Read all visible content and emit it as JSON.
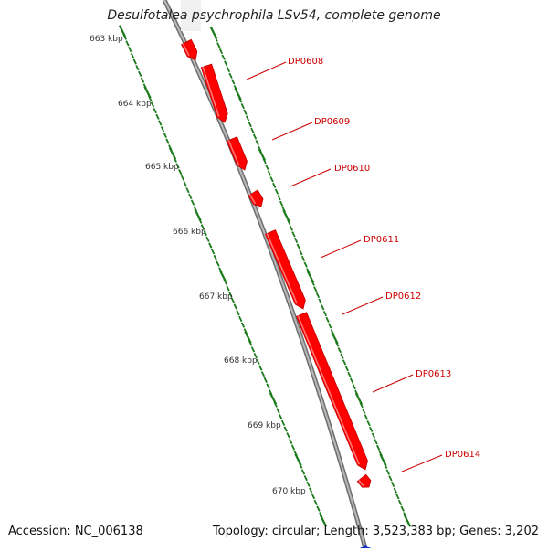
{
  "title": "Desulfotalea psychrophila LSv54, complete genome",
  "footer": {
    "accession": "Accession: NC_006138",
    "summary": "Topology: circular; Length: 3,523,383 bp; Genes: 3,202"
  },
  "colors": {
    "backbone": "#8a8a8a",
    "gene": "#ff0000",
    "gene_label": "#cc0000",
    "tick": "#1a7a1a",
    "strand_marker": "#1030d0"
  },
  "scale_labels": [
    "663 kbp",
    "664 kbp",
    "665 kbp",
    "666 kbp",
    "667 kbp",
    "668 kbp",
    "669 kbp",
    "670 kbp"
  ],
  "genes": [
    {
      "label": "DP0608"
    },
    {
      "label": "DP0609"
    },
    {
      "label": "DP0610"
    },
    {
      "label": "DP0611"
    },
    {
      "label": "DP0612"
    },
    {
      "label": "DP0613"
    },
    {
      "label": "DP0614"
    }
  ]
}
